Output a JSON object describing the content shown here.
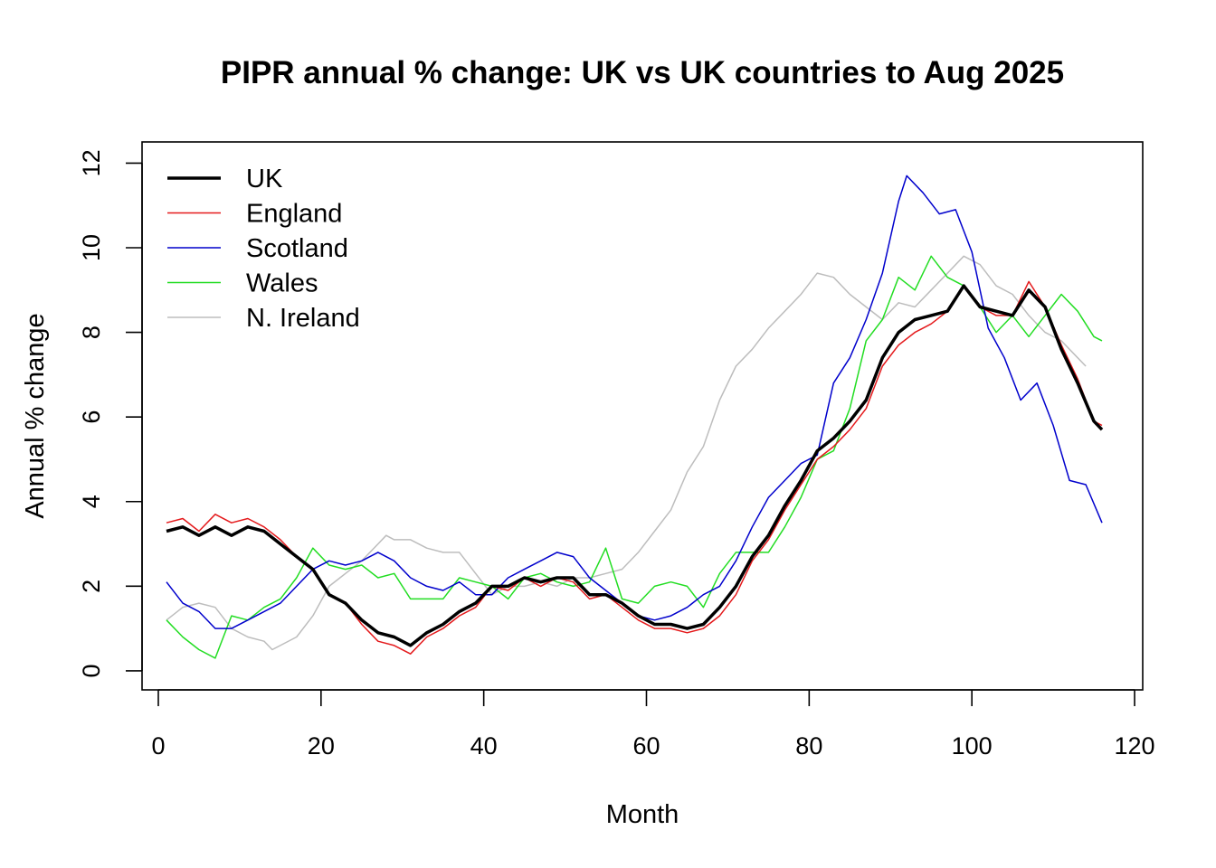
{
  "chart_data": {
    "type": "line",
    "title": "PIPR annual % change: UK vs UK countries to Aug 2025",
    "xlabel": "Month",
    "ylabel": "Annual % change",
    "xlim": [
      -2,
      121
    ],
    "ylim": [
      -0.45,
      12.5
    ],
    "xticks": [
      0,
      20,
      40,
      60,
      80,
      100,
      120
    ],
    "yticks": [
      0,
      2,
      4,
      6,
      8,
      10,
      12
    ],
    "grid": false,
    "legend": "top-left",
    "series": [
      {
        "name": "UK",
        "color": "#000000",
        "width": 3.5,
        "x": [
          1,
          3,
          5,
          7,
          9,
          11,
          13,
          15,
          17,
          19,
          21,
          23,
          25,
          27,
          29,
          31,
          33,
          35,
          37,
          39,
          41,
          43,
          45,
          47,
          49,
          51,
          53,
          55,
          57,
          59,
          61,
          63,
          65,
          67,
          69,
          71,
          73,
          75,
          77,
          79,
          81,
          83,
          85,
          87,
          89,
          91,
          93,
          95,
          97,
          99,
          101,
          103,
          105,
          107,
          109,
          111,
          113,
          115,
          116
        ],
        "y": [
          3.3,
          3.4,
          3.2,
          3.4,
          3.2,
          3.4,
          3.3,
          3.0,
          2.7,
          2.4,
          1.8,
          1.6,
          1.2,
          0.9,
          0.8,
          0.6,
          0.9,
          1.1,
          1.4,
          1.6,
          2.0,
          2.0,
          2.2,
          2.1,
          2.2,
          2.2,
          1.8,
          1.8,
          1.6,
          1.3,
          1.1,
          1.1,
          1.0,
          1.1,
          1.5,
          2.0,
          2.7,
          3.2,
          3.9,
          4.5,
          5.2,
          5.5,
          5.9,
          6.4,
          7.4,
          8.0,
          8.3,
          8.4,
          8.5,
          9.1,
          8.6,
          8.5,
          8.4,
          9.0,
          8.6,
          7.6,
          6.8,
          5.9,
          5.7
        ]
      },
      {
        "name": "England",
        "color": "#e41a1c",
        "width": 1.5,
        "x": [
          1,
          3,
          5,
          7,
          9,
          11,
          13,
          15,
          17,
          19,
          21,
          23,
          25,
          27,
          29,
          31,
          33,
          35,
          37,
          39,
          41,
          43,
          45,
          47,
          49,
          51,
          53,
          55,
          57,
          59,
          61,
          63,
          65,
          67,
          69,
          71,
          73,
          75,
          77,
          79,
          81,
          83,
          85,
          87,
          89,
          91,
          93,
          95,
          97,
          99,
          101,
          103,
          105,
          107,
          109,
          111,
          113,
          115,
          116
        ],
        "y": [
          3.5,
          3.6,
          3.3,
          3.7,
          3.5,
          3.6,
          3.4,
          3.1,
          2.7,
          2.4,
          1.8,
          1.6,
          1.1,
          0.7,
          0.6,
          0.4,
          0.8,
          1.0,
          1.3,
          1.5,
          2.0,
          1.9,
          2.2,
          2.0,
          2.2,
          2.1,
          1.7,
          1.8,
          1.5,
          1.2,
          1.0,
          1.0,
          0.9,
          1.0,
          1.3,
          1.8,
          2.6,
          3.1,
          3.8,
          4.4,
          5.0,
          5.3,
          5.7,
          6.2,
          7.2,
          7.7,
          8.0,
          8.2,
          8.5,
          9.1,
          8.6,
          8.4,
          8.4,
          9.2,
          8.6,
          7.7,
          6.9,
          5.9,
          5.8
        ]
      },
      {
        "name": "Scotland",
        "color": "#0000cc",
        "width": 1.5,
        "x": [
          1,
          3,
          5,
          7,
          9,
          11,
          13,
          15,
          17,
          19,
          21,
          23,
          25,
          27,
          29,
          31,
          33,
          35,
          37,
          39,
          41,
          43,
          45,
          47,
          49,
          51,
          53,
          55,
          57,
          59,
          61,
          63,
          65,
          67,
          69,
          71,
          73,
          75,
          77,
          79,
          81,
          83,
          85,
          87,
          89,
          91,
          92,
          94,
          96,
          98,
          100,
          102,
          104,
          106,
          108,
          110,
          112,
          114,
          116
        ],
        "y": [
          2.1,
          1.6,
          1.4,
          1.0,
          1.0,
          1.2,
          1.4,
          1.6,
          2.0,
          2.4,
          2.6,
          2.5,
          2.6,
          2.8,
          2.6,
          2.2,
          2.0,
          1.9,
          2.1,
          1.8,
          1.8,
          2.2,
          2.4,
          2.6,
          2.8,
          2.7,
          2.2,
          1.9,
          1.6,
          1.3,
          1.2,
          1.3,
          1.5,
          1.8,
          2.0,
          2.6,
          3.4,
          4.1,
          4.5,
          4.9,
          5.1,
          6.8,
          7.4,
          8.3,
          9.4,
          11.1,
          11.7,
          11.3,
          10.8,
          10.9,
          9.9,
          8.1,
          7.4,
          6.4,
          6.8,
          5.8,
          4.5,
          4.4,
          3.5
        ]
      },
      {
        "name": "Wales",
        "color": "#22dd22",
        "width": 1.5,
        "x": [
          1,
          3,
          5,
          7,
          9,
          11,
          13,
          15,
          17,
          19,
          21,
          23,
          25,
          27,
          29,
          31,
          33,
          35,
          37,
          39,
          41,
          43,
          45,
          47,
          49,
          51,
          53,
          55,
          57,
          59,
          61,
          63,
          65,
          67,
          69,
          71,
          73,
          75,
          77,
          79,
          81,
          83,
          85,
          87,
          89,
          91,
          93,
          95,
          97,
          99,
          101,
          103,
          105,
          107,
          109,
          111,
          113,
          115,
          116
        ],
        "y": [
          1.2,
          0.8,
          0.5,
          0.3,
          1.3,
          1.2,
          1.5,
          1.7,
          2.2,
          2.9,
          2.5,
          2.4,
          2.5,
          2.2,
          2.3,
          1.7,
          1.7,
          1.7,
          2.2,
          2.1,
          2.0,
          1.7,
          2.2,
          2.3,
          2.1,
          2.0,
          2.1,
          2.9,
          1.7,
          1.6,
          2.0,
          2.1,
          2.0,
          1.5,
          2.3,
          2.8,
          2.8,
          2.8,
          3.4,
          4.1,
          5.0,
          5.2,
          6.2,
          7.8,
          8.3,
          9.3,
          9.0,
          9.8,
          9.3,
          9.1,
          8.6,
          8.0,
          8.4,
          7.9,
          8.4,
          8.9,
          8.5,
          7.9,
          7.8
        ]
      },
      {
        "name": "N. Ireland",
        "color": "#bdbdbd",
        "width": 1.5,
        "x": [
          1,
          3,
          5,
          7,
          9,
          11,
          13,
          14,
          17,
          19,
          21,
          23,
          25,
          27,
          28,
          29,
          31,
          33,
          35,
          37,
          39,
          41,
          43,
          45,
          47,
          49,
          51,
          53,
          55,
          57,
          59,
          61,
          63,
          65,
          67,
          69,
          71,
          73,
          75,
          77,
          79,
          81,
          83,
          85,
          87,
          89,
          91,
          93,
          95,
          97,
          99,
          101,
          103,
          105,
          107,
          109,
          111,
          113,
          114
        ],
        "y": [
          1.2,
          1.5,
          1.6,
          1.5,
          1.0,
          0.8,
          0.7,
          0.5,
          0.8,
          1.3,
          2.0,
          2.3,
          2.6,
          3.0,
          3.2,
          3.1,
          3.1,
          2.9,
          2.8,
          2.8,
          2.3,
          1.8,
          2.0,
          2.0,
          2.1,
          2.0,
          2.2,
          2.2,
          2.3,
          2.4,
          2.8,
          3.3,
          3.8,
          4.7,
          5.3,
          6.4,
          7.2,
          7.6,
          8.1,
          8.5,
          8.9,
          9.4,
          9.3,
          8.9,
          8.6,
          8.3,
          8.7,
          8.6,
          9.0,
          9.4,
          9.8,
          9.6,
          9.1,
          8.9,
          8.4,
          8.0,
          7.8,
          7.4,
          7.2
        ]
      }
    ]
  }
}
